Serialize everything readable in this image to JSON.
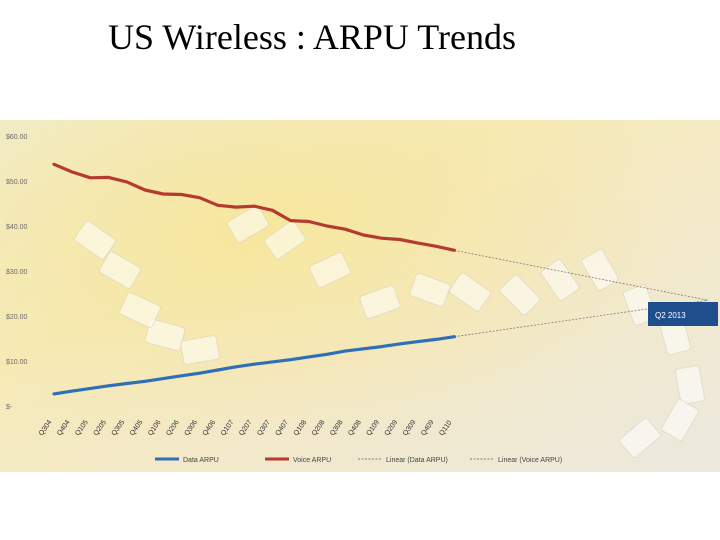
{
  "slide": {
    "title": "US Wireless : ARPU Trends"
  },
  "chart_data": {
    "type": "line",
    "title": "",
    "xlabel": "",
    "ylabel": "",
    "ylim": [
      0,
      60
    ],
    "y_ticks": [
      "$-",
      "$10.00",
      "$20.00",
      "$30.00",
      "$40.00",
      "$50.00",
      "$60.00"
    ],
    "categories": [
      "Q304",
      "Q404",
      "Q105",
      "Q205",
      "Q305",
      "Q405",
      "Q106",
      "Q206",
      "Q306",
      "Q406",
      "Q107",
      "Q207",
      "Q307",
      "Q407",
      "Q108",
      "Q208",
      "Q308",
      "Q408",
      "Q109",
      "Q209",
      "Q309",
      "Q409",
      "Q110"
    ],
    "series": [
      {
        "name": "Data ARPU",
        "color": "#2f6fb7",
        "values": [
          2.7,
          3.3,
          3.9,
          4.5,
          5.0,
          5.5,
          6.1,
          6.7,
          7.3,
          8.0,
          8.7,
          9.3,
          9.8,
          10.3,
          10.9,
          11.5,
          12.2,
          12.7,
          13.2,
          13.8,
          14.3,
          14.8,
          15.4
        ]
      },
      {
        "name": "Voice ARPU",
        "color": "#b53a30",
        "values": [
          53.7,
          52.0,
          50.7,
          50.8,
          49.8,
          48.0,
          47.1,
          47.0,
          46.3,
          44.6,
          44.2,
          44.4,
          43.5,
          41.2,
          41.0,
          40.0,
          39.3,
          38.0,
          37.3,
          37.0,
          36.2,
          35.5,
          34.6
        ]
      }
    ],
    "trendlines": [
      {
        "name": "Linear (Data ARPU)",
        "series": "Data ARPU",
        "end_value": 23.5
      },
      {
        "name": "Linear (Voice ARPU)",
        "series": "Voice ARPU",
        "end_value": 23.5
      }
    ],
    "annotation": {
      "label": "Q2 2013",
      "color": "#1f4e8c"
    },
    "legend": {
      "position": "bottom"
    },
    "grid": false
  }
}
